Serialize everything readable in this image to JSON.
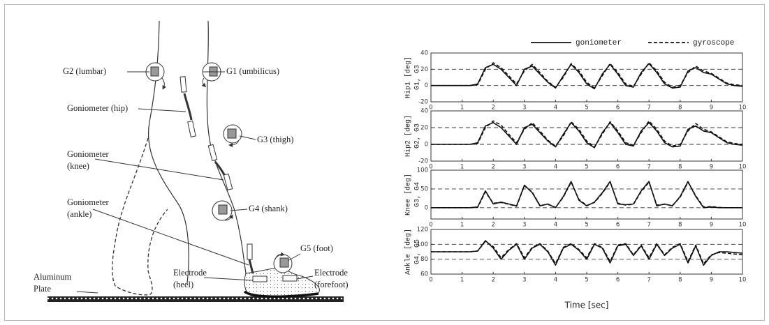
{
  "diagram": {
    "labels": {
      "g2": "G2 (lumbar)",
      "g1": "G1 (umbilicus)",
      "gon_hip": "Goniometer (hip)",
      "g3": "G3 (thigh)",
      "gon_knee": [
        "Goniometer",
        "(knee)"
      ],
      "g4": "G4 (shank)",
      "gon_ankle": [
        "Goniometer",
        "(ankle)"
      ],
      "g5": "G5 (foot)",
      "plate": [
        "Aluminum",
        "Plate"
      ],
      "heel": [
        "Electrode",
        "(heel)"
      ],
      "forefoot": [
        "Electrode",
        "(forefoot)"
      ]
    }
  },
  "chart_data": [
    {
      "type": "line",
      "ylabel": [
        "Hip1 [deg]",
        "G1, G3"
      ],
      "grid": true,
      "xlim": [
        0,
        10
      ],
      "xticks": [
        0,
        1,
        2,
        3,
        4,
        5,
        6,
        7,
        8,
        9,
        10
      ],
      "ylim": [
        -20,
        40
      ],
      "yticks": [
        -20,
        0,
        20,
        40
      ],
      "x": [
        0,
        0.25,
        0.5,
        0.75,
        1,
        1.25,
        1.5,
        1.75,
        2,
        2.25,
        2.5,
        2.75,
        3,
        3.25,
        3.5,
        3.75,
        4,
        4.25,
        4.5,
        4.75,
        5,
        5.25,
        5.5,
        5.75,
        6,
        6.25,
        6.5,
        6.75,
        7,
        7.25,
        7.5,
        7.75,
        8,
        8.25,
        8.5,
        8.75,
        9,
        9.25,
        9.5,
        9.75,
        10
      ],
      "series": [
        {
          "name": "goniometer",
          "color": "#111111",
          "style": "solid",
          "values": [
            0,
            0,
            0,
            0,
            0,
            0,
            2,
            22,
            26,
            20,
            10,
            0,
            20,
            24,
            14,
            4,
            -3,
            12,
            26,
            16,
            2,
            -4,
            14,
            26,
            14,
            0,
            -2,
            16,
            27,
            16,
            2,
            -3,
            -2,
            18,
            22,
            16,
            14,
            8,
            2,
            0,
            -1
          ]
        },
        {
          "name": "gyroscope",
          "color": "#111111",
          "style": "dashed",
          "values": [
            0,
            0,
            0,
            0,
            0,
            0,
            1,
            20,
            28,
            22,
            12,
            2,
            18,
            26,
            16,
            5,
            -2,
            10,
            27,
            18,
            4,
            -3,
            12,
            27,
            16,
            2,
            -1,
            14,
            28,
            18,
            4,
            -2,
            0,
            16,
            24,
            18,
            15,
            9,
            3,
            1,
            0
          ]
        }
      ]
    },
    {
      "type": "line",
      "ylabel": [
        "Hip2 [deg]",
        "G2, G3"
      ],
      "grid": true,
      "xlim": [
        0,
        10
      ],
      "xticks": [
        0,
        1,
        2,
        3,
        4,
        5,
        6,
        7,
        8,
        9,
        10
      ],
      "ylim": [
        -20,
        40
      ],
      "yticks": [
        -20,
        0,
        20,
        40
      ],
      "x": [
        0,
        0.25,
        0.5,
        0.75,
        1,
        1.25,
        1.5,
        1.75,
        2,
        2.25,
        2.5,
        2.75,
        3,
        3.25,
        3.5,
        3.75,
        4,
        4.25,
        4.5,
        4.75,
        5,
        5.25,
        5.5,
        5.75,
        6,
        6.25,
        6.5,
        6.75,
        7,
        7.25,
        7.5,
        7.75,
        8,
        8.25,
        8.5,
        8.75,
        9,
        9.25,
        9.5,
        9.75,
        10
      ],
      "series": [
        {
          "color": "#111111",
          "style": "solid",
          "values": [
            0,
            0,
            0,
            0,
            0,
            0,
            2,
            22,
            26,
            20,
            10,
            0,
            20,
            24,
            14,
            4,
            -3,
            12,
            26,
            16,
            2,
            -4,
            14,
            26,
            14,
            0,
            -2,
            16,
            26,
            16,
            2,
            -3,
            -2,
            18,
            22,
            16,
            14,
            8,
            2,
            0,
            -1
          ]
        },
        {
          "color": "#111111",
          "style": "dashed",
          "values": [
            0,
            0,
            0,
            0,
            0,
            0,
            1,
            20,
            28,
            23,
            12,
            2,
            18,
            26,
            16,
            5,
            -2,
            10,
            27,
            18,
            4,
            -3,
            12,
            27,
            16,
            2,
            -1,
            14,
            28,
            18,
            4,
            -2,
            0,
            16,
            25,
            18,
            15,
            9,
            3,
            1,
            0
          ]
        }
      ]
    },
    {
      "type": "line",
      "ylabel": [
        "Knee [deg]",
        "G3, G4"
      ],
      "grid": true,
      "xlim": [
        0,
        10
      ],
      "xticks": [
        0,
        1,
        2,
        3,
        4,
        5,
        6,
        7,
        8,
        9,
        10
      ],
      "ylim": [
        -30,
        100
      ],
      "yticks": [
        0,
        50,
        100
      ],
      "x": [
        0,
        0.25,
        0.5,
        0.75,
        1,
        1.25,
        1.5,
        1.75,
        2,
        2.25,
        2.5,
        2.75,
        3,
        3.25,
        3.5,
        3.75,
        4,
        4.25,
        4.5,
        4.75,
        5,
        5.25,
        5.5,
        5.75,
        6,
        6.25,
        6.5,
        6.75,
        7,
        7.25,
        7.5,
        7.75,
        8,
        8.25,
        8.5,
        8.75,
        9,
        9.25,
        9.5,
        9.75,
        10
      ],
      "series": [
        {
          "color": "#111111",
          "style": "solid",
          "values": [
            0,
            0,
            0,
            0,
            0,
            0,
            2,
            45,
            10,
            15,
            10,
            5,
            60,
            40,
            5,
            10,
            0,
            30,
            70,
            20,
            5,
            15,
            40,
            70,
            10,
            8,
            10,
            45,
            70,
            5,
            10,
            5,
            30,
            70,
            30,
            0,
            2,
            0,
            0,
            0,
            0
          ]
        },
        {
          "color": "#111111",
          "style": "dashed",
          "values": [
            0,
            0,
            0,
            0,
            0,
            0,
            1,
            42,
            12,
            14,
            9,
            4,
            58,
            42,
            6,
            9,
            1,
            28,
            68,
            22,
            6,
            14,
            38,
            68,
            12,
            7,
            9,
            43,
            68,
            7,
            9,
            6,
            28,
            68,
            32,
            2,
            3,
            1,
            0,
            0,
            0
          ]
        }
      ]
    },
    {
      "type": "line",
      "ylabel": [
        "Ankle [deg]",
        "G4, G5"
      ],
      "grid": true,
      "xlabel": "Time [sec]",
      "xlim": [
        0,
        10
      ],
      "xticks": [
        0,
        1,
        2,
        3,
        4,
        5,
        6,
        7,
        8,
        9,
        10
      ],
      "ylim": [
        60,
        120
      ],
      "yticks": [
        60,
        80,
        100,
        120
      ],
      "x": [
        0,
        0.25,
        0.5,
        0.75,
        1,
        1.25,
        1.5,
        1.75,
        2,
        2.25,
        2.5,
        2.75,
        3,
        3.25,
        3.5,
        3.75,
        4,
        4.25,
        4.5,
        4.75,
        5,
        5.25,
        5.5,
        5.75,
        6,
        6.25,
        6.5,
        6.75,
        7,
        7.25,
        7.5,
        7.75,
        8,
        8.25,
        8.5,
        8.75,
        9,
        9.25,
        9.5,
        9.75,
        10
      ],
      "series": [
        {
          "color": "#111111",
          "style": "solid",
          "values": [
            90,
            90,
            90,
            90,
            90,
            90,
            91,
            105,
            95,
            80,
            92,
            100,
            80,
            95,
            100,
            90,
            72,
            95,
            100,
            92,
            80,
            100,
            95,
            75,
            98,
            100,
            85,
            98,
            80,
            100,
            85,
            95,
            100,
            75,
            98,
            72,
            85,
            90,
            90,
            89,
            88
          ]
        },
        {
          "color": "#111111",
          "style": "dashed",
          "values": [
            90,
            90,
            90,
            90,
            90,
            90,
            91,
            104,
            97,
            82,
            93,
            101,
            82,
            96,
            101,
            91,
            74,
            96,
            101,
            93,
            82,
            101,
            96,
            77,
            99,
            101,
            86,
            99,
            82,
            101,
            86,
            96,
            101,
            77,
            99,
            74,
            86,
            89,
            88,
            87,
            86
          ]
        }
      ]
    }
  ]
}
